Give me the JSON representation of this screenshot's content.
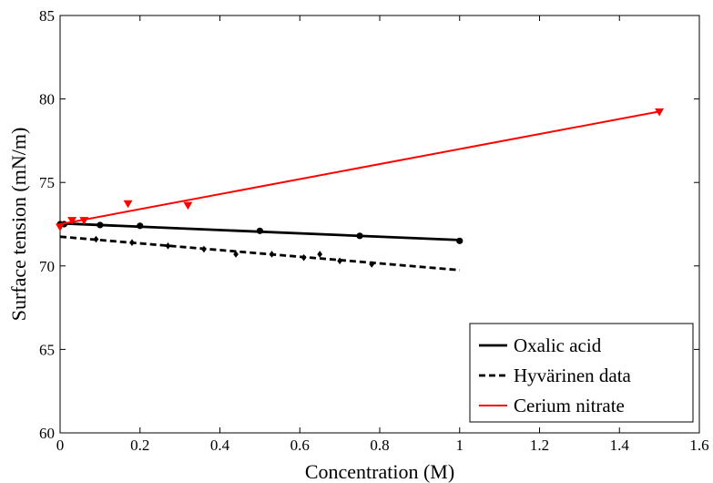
{
  "chart_data": {
    "type": "line",
    "xlabel": "Concentration (M)",
    "ylabel": "Surface tension (mN/m)",
    "xlim": [
      0,
      1.6
    ],
    "ylim": [
      60,
      85
    ],
    "x_ticks": [
      "0",
      "0.2",
      "0.4",
      "0.6",
      "0.8",
      "1",
      "1.2",
      "1.4",
      "1.6"
    ],
    "y_ticks": [
      "60",
      "65",
      "70",
      "75",
      "80",
      "85"
    ],
    "grid": false,
    "legend_position": "bottom-right",
    "series": [
      {
        "name": "Oxalic acid",
        "color": "#000000",
        "line_style": "solid",
        "marker": "circle",
        "fit_line": {
          "x": [
            0,
            1
          ],
          "y": [
            72.55,
            71.55
          ]
        },
        "points": {
          "x": [
            0,
            0.01,
            0.1,
            0.2,
            0.5,
            0.75,
            1.0
          ],
          "y": [
            72.5,
            72.5,
            72.45,
            72.4,
            72.1,
            71.8,
            71.5
          ]
        }
      },
      {
        "name": "Hyvärinen data",
        "color": "#000000",
        "line_style": "dashed",
        "marker": "diamond",
        "fit_line": {
          "x": [
            0,
            1
          ],
          "y": [
            71.75,
            69.75
          ]
        },
        "points": {
          "x": [
            0.09,
            0.18,
            0.27,
            0.36,
            0.44,
            0.53,
            0.61,
            0.65,
            0.7,
            0.78
          ],
          "y": [
            71.6,
            71.4,
            71.2,
            71.0,
            70.7,
            70.7,
            70.5,
            70.7,
            70.3,
            70.1
          ]
        }
      },
      {
        "name": "Cerium nitrate",
        "color": "#ff0000",
        "line_style": "solid",
        "marker": "triangle-down",
        "fit_line": {
          "x": [
            0,
            1.5
          ],
          "y": [
            72.5,
            79.25
          ]
        },
        "points": {
          "x": [
            0,
            0.03,
            0.06,
            0.17,
            0.32,
            1.5
          ],
          "y": [
            72.3,
            72.7,
            72.7,
            73.7,
            73.6,
            79.2
          ]
        }
      }
    ]
  }
}
